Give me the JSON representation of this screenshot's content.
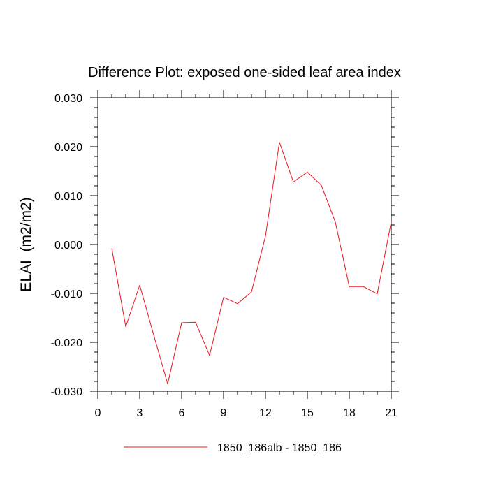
{
  "chart_data": {
    "type": "line",
    "title": "Difference Plot: exposed one-sided leaf area index",
    "xlabel": "",
    "ylabel": "ELAI  (m2/m2)",
    "xlim": [
      0,
      21
    ],
    "ylim": [
      -0.03,
      0.03
    ],
    "xticks": [
      0,
      3,
      6,
      9,
      12,
      15,
      18,
      21
    ],
    "xtick_labels": [
      "0",
      "3",
      "6",
      "9",
      "12",
      "15",
      "18",
      "21"
    ],
    "yticks": [
      -0.03,
      -0.02,
      -0.01,
      0.0,
      0.01,
      0.02,
      0.03
    ],
    "ytick_labels": [
      "-0.030",
      "-0.020",
      "-0.010",
      "0.000",
      "0.010",
      "0.020",
      "0.030"
    ],
    "grid": false,
    "legend_position": "bottom",
    "series": [
      {
        "name": "1850_186alb - 1850_186",
        "color": "#e8141c",
        "x": [
          1,
          2,
          3,
          4,
          5,
          6,
          7,
          8,
          9,
          10,
          11,
          12,
          13,
          14,
          15,
          16,
          17,
          18,
          19,
          20,
          21
        ],
        "y": [
          -0.0008,
          -0.0168,
          -0.0083,
          -0.0185,
          -0.0285,
          -0.016,
          -0.0159,
          -0.0227,
          -0.0108,
          -0.0121,
          -0.0097,
          0.0017,
          0.0209,
          0.0128,
          0.0148,
          0.0121,
          0.0046,
          -0.0086,
          -0.0086,
          -0.0101,
          0.0046
        ]
      }
    ]
  }
}
